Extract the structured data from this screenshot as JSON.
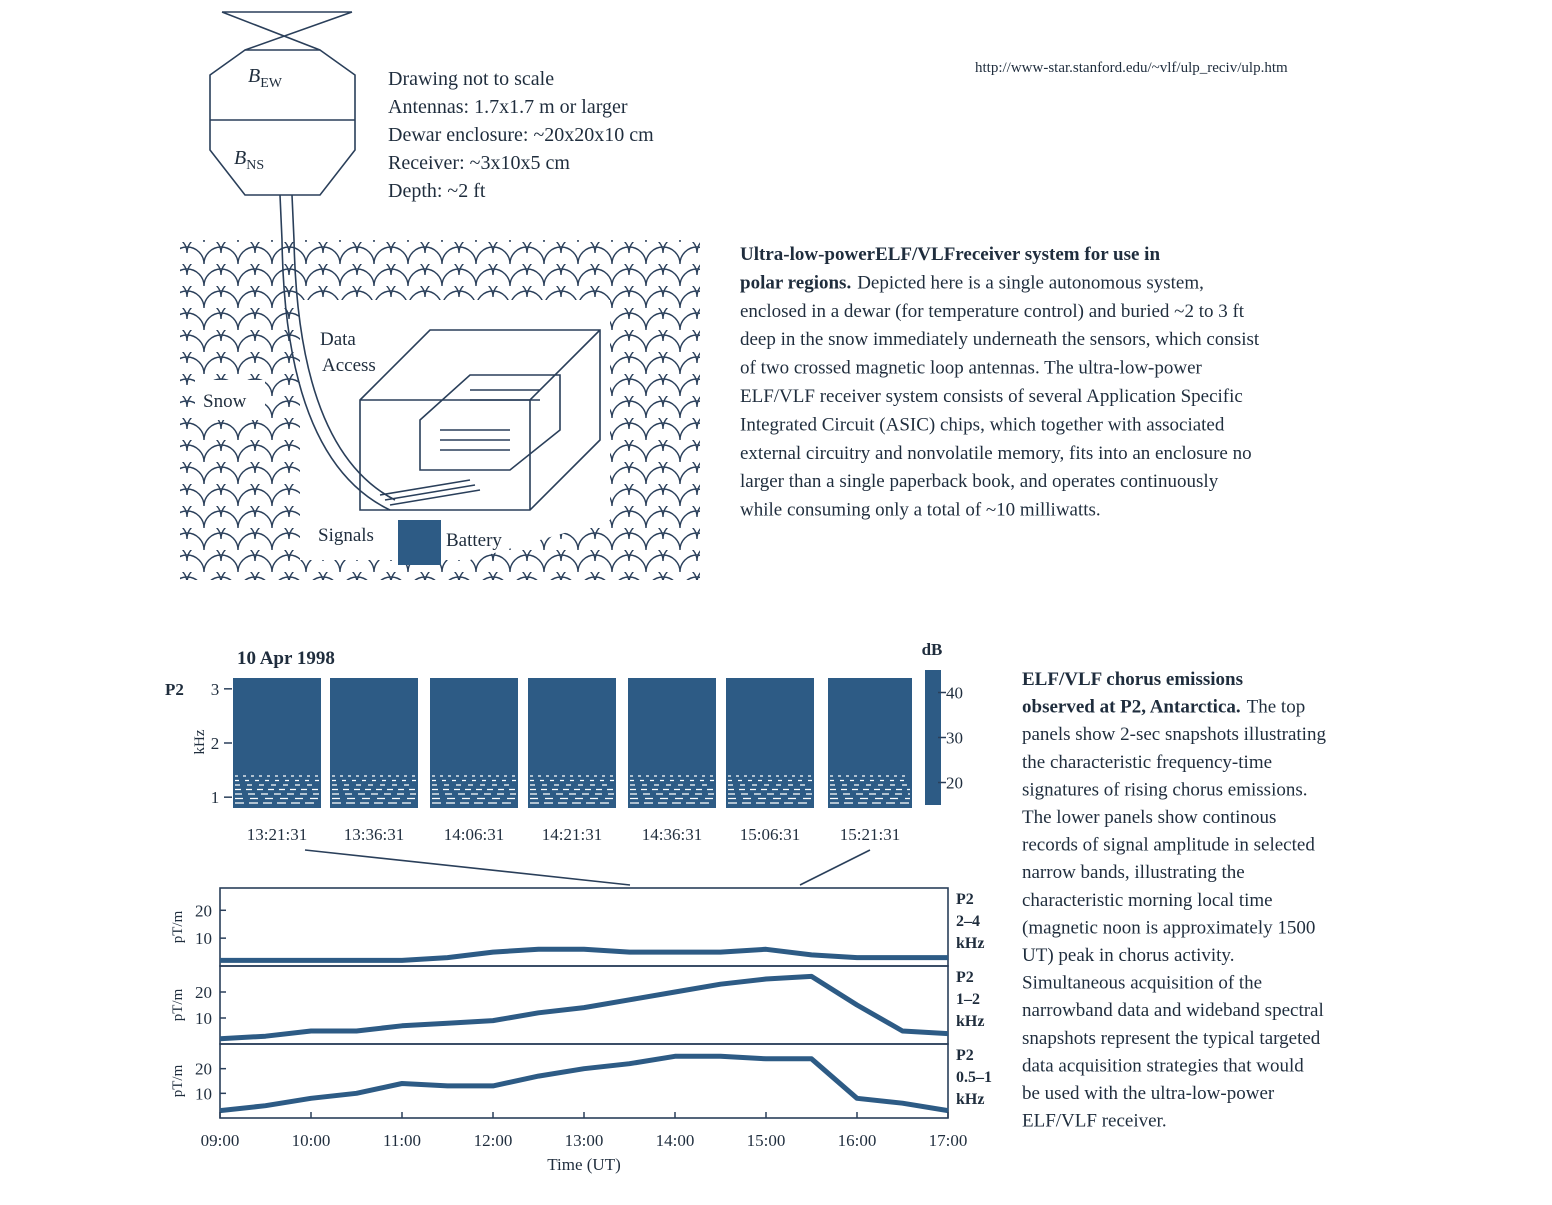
{
  "url": "http://www-star.stanford.edu/~vlf/ulp_reciv/ulp.htm",
  "drawing": {
    "b_ew": "B",
    "b_ew_sub": "EW",
    "b_ns": "B",
    "b_ns_sub": "NS",
    "notes": [
      "Drawing not to scale",
      "Antennas: 1.7x1.7 m or larger",
      "Dewar enclosure: ~20x20x10 cm",
      "Receiver:  ~3x10x5 cm",
      "Depth: ~2 ft"
    ],
    "data_access": [
      "Data",
      "Access"
    ],
    "snow": "Snow",
    "signals": "Signals",
    "battery": "Battery"
  },
  "caption1": {
    "title": [
      "Ultra-low-powerELF/VLFreceiver system for use in",
      "polar regions."
    ],
    "body": [
      "Depicted here is a single autonomous system,",
      "enclosed in a dewar (for temperature control) and buried ~2 to 3 ft",
      "deep in the snow immediately underneath the sensors, which consist",
      "of two crossed magnetic loop antennas. The ultra-low-power",
      "ELF/VLF receiver system consists of several Application Specific",
      "Integrated Circuit (ASIC) chips, which together with associated",
      "external circuitry and nonvolatile memory, fits into an enclosure no",
      "larger than a single paperback book, and operates continuously",
      "while consuming only a total of ~10 milliwatts."
    ]
  },
  "spectrogram": {
    "date": "10 Apr 1998",
    "station": "P2",
    "ylabel": "kHz",
    "yticks": [
      1,
      2,
      3
    ],
    "ylim": [
      0.8,
      3.2
    ],
    "db_label": "dB",
    "db_ticks": [
      20,
      30,
      40
    ],
    "db_lim": [
      15,
      45
    ],
    "times": [
      "13:21:31",
      "13:36:31",
      "14:06:31",
      "14:21:31",
      "14:36:31",
      "15:06:31",
      "15:21:31"
    ]
  },
  "narrowband": {
    "ylabel": "pT/m",
    "xlabel": "Time (UT)",
    "x": [
      9,
      9.5,
      10,
      10.5,
      11,
      11.5,
      12,
      12.5,
      13,
      13.5,
      14,
      14.5,
      15,
      15.5,
      16,
      16.5,
      17
    ],
    "xlim": [
      9,
      17
    ],
    "xticks": [
      {
        "value": 9,
        "label": "09:00"
      },
      {
        "value": 10,
        "label": "10:00"
      },
      {
        "value": 11,
        "label": "11:00"
      },
      {
        "value": 12,
        "label": "12:00"
      },
      {
        "value": 13,
        "label": "13:00"
      },
      {
        "value": 14,
        "label": "14:00"
      },
      {
        "value": 15,
        "label": "15:00"
      },
      {
        "value": 16,
        "label": "16:00"
      },
      {
        "value": 17,
        "label": "17:00"
      }
    ],
    "panels": [
      {
        "label": [
          "P2",
          "2–4",
          "kHz"
        ],
        "ylim": [
          0,
          28
        ],
        "yticks": [
          10,
          20
        ],
        "color": "#2d5b85",
        "values": [
          2,
          2,
          2,
          2,
          2,
          3,
          5,
          6,
          6,
          5,
          5,
          5,
          6,
          4,
          3,
          3,
          3
        ]
      },
      {
        "label": [
          "P2",
          "1–2",
          "kHz"
        ],
        "ylim": [
          0,
          30
        ],
        "yticks": [
          10,
          20
        ],
        "color": "#2d5b85",
        "values": [
          2,
          3,
          5,
          5,
          7,
          8,
          9,
          12,
          14,
          17,
          20,
          23,
          25,
          26,
          15,
          5,
          4
        ]
      },
      {
        "label": [
          "P2",
          "0.5–1",
          "kHz"
        ],
        "ylim": [
          0,
          30
        ],
        "yticks": [
          10,
          20
        ],
        "color": "#2d5b85",
        "values": [
          3,
          5,
          8,
          10,
          14,
          13,
          13,
          17,
          20,
          22,
          25,
          25,
          24,
          24,
          8,
          6,
          3
        ]
      }
    ]
  },
  "caption2": {
    "title": [
      "ELF/VLF chorus emissions",
      "observed at P2, Antarctica."
    ],
    "body": [
      "The top",
      "panels show 2-sec snapshots illustrating",
      "the characteristic frequency-time",
      "signatures of rising chorus emissions.",
      "The lower panels show continous",
      "records of signal amplitude in selected",
      "narrow bands, illustrating the",
      "characteristic morning local time",
      "(magnetic noon is approximately 1500",
      "UT) peak in chorus activity.",
      "Simultaneous acquisition of the",
      "narrowband data and wideband spectral",
      "snapshots represent the typical targeted",
      "data acquisition strategies that would",
      "be used with the ultra-low-power",
      "ELF/VLF receiver."
    ]
  }
}
